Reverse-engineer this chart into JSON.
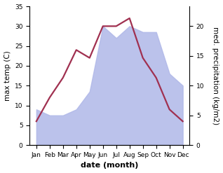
{
  "months": [
    "Jan",
    "Feb",
    "Mar",
    "Apr",
    "May",
    "Jun",
    "Jul",
    "Aug",
    "Sep",
    "Oct",
    "Nov",
    "Dec"
  ],
  "temperature": [
    6,
    12,
    17,
    24,
    22,
    30,
    30,
    32,
    22,
    17,
    9,
    6
  ],
  "precipitation": [
    6,
    5,
    5,
    6,
    9,
    20,
    18,
    20,
    19,
    19,
    12,
    10
  ],
  "temp_color": "#a03050",
  "precip_fill_color": "#b0b8e8",
  "precip_edge_color": "#b0b8e8",
  "temp_ylim": [
    0,
    35
  ],
  "precip_ylim": [
    0,
    23.33
  ],
  "right_yticks": [
    0,
    5,
    10,
    15,
    20
  ],
  "left_yticks": [
    0,
    5,
    10,
    15,
    20,
    25,
    30,
    35
  ],
  "xlabel": "date (month)",
  "ylabel_left": "max temp (C)",
  "ylabel_right": "med. precipitation (kg/m2)",
  "line_width": 1.6,
  "tick_fontsize": 6.5,
  "label_fontsize": 7.5,
  "xlabel_fontsize": 8
}
